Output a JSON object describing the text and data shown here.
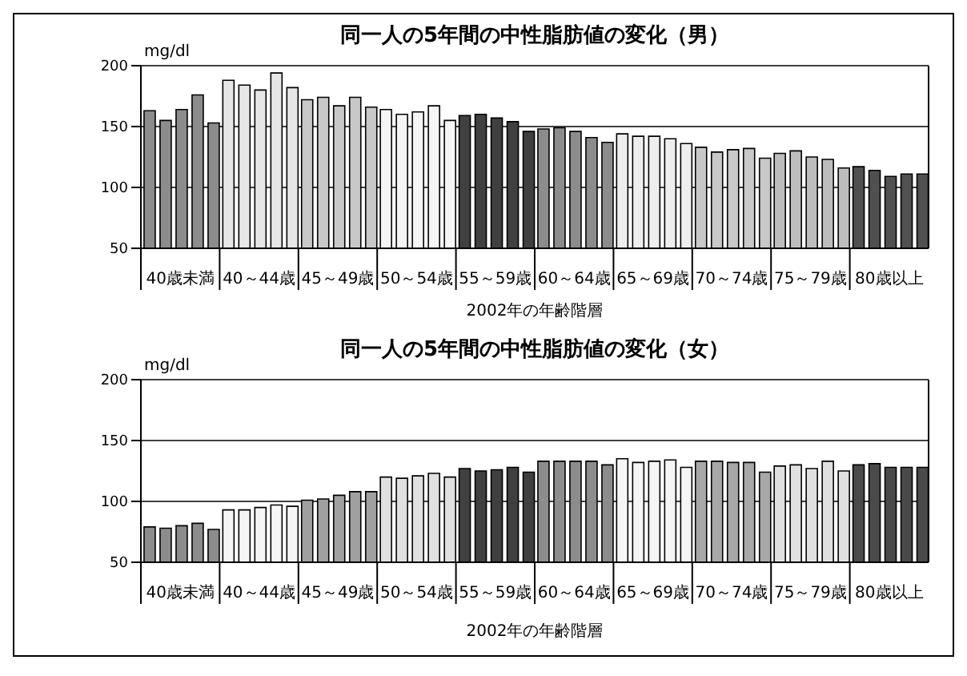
{
  "chart_data": [
    {
      "type": "bar",
      "title": "同一人の5年間の中性脂肪値の変化（男）",
      "xlabel": "2002年の年齢階層",
      "ylabel": "mg/dl",
      "categories": [
        "40歳未満",
        "40～44歳",
        "45～49歳",
        "50～54歳",
        "55～59歳",
        "60～64歳",
        "65～69歳",
        "70～74歳",
        "75～79歳",
        "80歳以上"
      ],
      "series": [
        {
          "colors": [
            "#8c8c8c",
            "#e6e6e6",
            "#c8c8c8",
            "#f5f5f5",
            "#404040",
            "#8c8c8c",
            "#eeeeee",
            "#c8c8c8",
            "#bdbdbd",
            "#505050"
          ],
          "values": [
            163,
            188,
            172,
            164,
            159,
            148,
            144,
            133,
            128,
            117
          ]
        },
        {
          "colors": [
            "#8c8c8c",
            "#e6e6e6",
            "#c8c8c8",
            "#f5f5f5",
            "#404040",
            "#8c8c8c",
            "#eeeeee",
            "#c8c8c8",
            "#bdbdbd",
            "#505050"
          ],
          "values": [
            155,
            184,
            174,
            160,
            160,
            149,
            142,
            129,
            130,
            114
          ]
        },
        {
          "colors": [
            "#8c8c8c",
            "#e6e6e6",
            "#c8c8c8",
            "#f5f5f5",
            "#404040",
            "#8c8c8c",
            "#eeeeee",
            "#c8c8c8",
            "#bdbdbd",
            "#505050"
          ],
          "values": [
            164,
            180,
            167,
            162,
            157,
            146,
            142,
            131,
            125,
            109
          ]
        },
        {
          "colors": [
            "#8c8c8c",
            "#e6e6e6",
            "#c8c8c8",
            "#f5f5f5",
            "#404040",
            "#8c8c8c",
            "#eeeeee",
            "#c8c8c8",
            "#bdbdbd",
            "#505050"
          ],
          "values": [
            176,
            194,
            174,
            167,
            154,
            141,
            140,
            132,
            123,
            111
          ]
        },
        {
          "colors": [
            "#8c8c8c",
            "#e6e6e6",
            "#c8c8c8",
            "#f5f5f5",
            "#404040",
            "#8c8c8c",
            "#eeeeee",
            "#c8c8c8",
            "#bdbdbd",
            "#505050"
          ],
          "values": [
            153,
            182,
            166,
            155,
            146,
            137,
            136,
            124,
            116,
            111
          ]
        }
      ],
      "ylim": [
        50,
        200
      ],
      "yticks": [
        50,
        100,
        150,
        200
      ],
      "grid": "y"
    },
    {
      "type": "bar",
      "title": "同一人の5年間の中性脂肪値の変化（女）",
      "xlabel": "2002年の年齢階層",
      "ylabel": "mg/dl",
      "categories": [
        "40歳未満",
        "40～44歳",
        "45～49歳",
        "50～54歳",
        "55～59歳",
        "60～64歳",
        "65～69歳",
        "70～74歳",
        "75～79歳",
        "80歳以上"
      ],
      "series": [
        {
          "colors": [
            "#8c8c8c",
            "#f5f5f5",
            "#a0a0a0",
            "#e0e0e0",
            "#404040",
            "#8c8c8c",
            "#f5f5f5",
            "#a8a8a8",
            "#e0e0e0",
            "#4a4a4a"
          ],
          "values": [
            79,
            93,
            101,
            120,
            127,
            133,
            135,
            133,
            129,
            130
          ]
        },
        {
          "colors": [
            "#8c8c8c",
            "#f5f5f5",
            "#a0a0a0",
            "#e0e0e0",
            "#404040",
            "#8c8c8c",
            "#f5f5f5",
            "#a8a8a8",
            "#e0e0e0",
            "#4a4a4a"
          ],
          "values": [
            78,
            93,
            102,
            119,
            125,
            133,
            132,
            133,
            130,
            131
          ]
        },
        {
          "colors": [
            "#8c8c8c",
            "#f5f5f5",
            "#a0a0a0",
            "#e0e0e0",
            "#404040",
            "#8c8c8c",
            "#f5f5f5",
            "#a8a8a8",
            "#e0e0e0",
            "#4a4a4a"
          ],
          "values": [
            80,
            95,
            105,
            121,
            126,
            133,
            133,
            132,
            127,
            128
          ]
        },
        {
          "colors": [
            "#8c8c8c",
            "#f5f5f5",
            "#a0a0a0",
            "#e0e0e0",
            "#404040",
            "#8c8c8c",
            "#f5f5f5",
            "#a8a8a8",
            "#e0e0e0",
            "#4a4a4a"
          ],
          "values": [
            82,
            97,
            108,
            123,
            128,
            133,
            134,
            132,
            133,
            128
          ]
        },
        {
          "colors": [
            "#8c8c8c",
            "#f5f5f5",
            "#a0a0a0",
            "#e0e0e0",
            "#404040",
            "#8c8c8c",
            "#f5f5f5",
            "#a8a8a8",
            "#e0e0e0",
            "#4a4a4a"
          ],
          "values": [
            77,
            96,
            108,
            120,
            124,
            130,
            128,
            124,
            125,
            128
          ]
        }
      ],
      "ylim": [
        50,
        200
      ],
      "yticks": [
        50,
        100,
        150,
        200
      ],
      "grid": "y"
    }
  ]
}
